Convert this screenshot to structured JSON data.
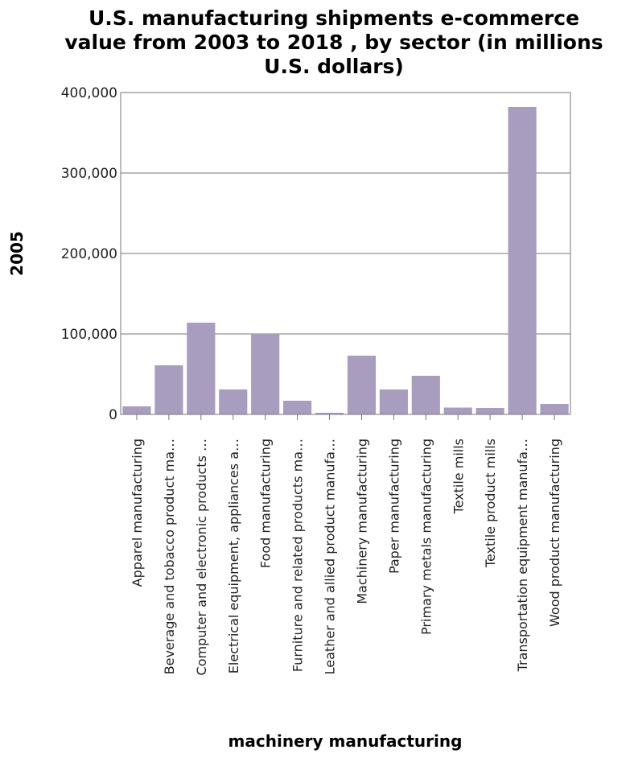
{
  "colors": {
    "bar": "#a89cbf",
    "grid": "#777777",
    "frame": "#777777",
    "background": "#ffffff",
    "text": "#000000"
  },
  "chart_data": {
    "type": "bar",
    "title_lines": [
      "U.S. manufacturing shipments e-commerce",
      "value from 2003 to 2018 , by sector (in millions",
      "U.S. dollars)"
    ],
    "xlabel": "machinery manufacturing",
    "ylabel": "2005",
    "ylim": [
      0,
      400000
    ],
    "yticks": [
      0,
      100000,
      200000,
      300000,
      400000
    ],
    "ytick_labels": [
      "0",
      "100,000",
      "200,000",
      "300,000",
      "400,000"
    ],
    "grid": "horizontal",
    "categories": [
      "Apparel manufacturing",
      "Beverage and tobacco product ma…",
      "Computer and electronic products …",
      "Electrical equipment, appliances a…",
      "Food manufacturing",
      "Furniture and related products ma…",
      "Leather and allied product manufa…",
      "Machinery manufacturing",
      "Paper manufacturing",
      "Primary metals manufacturing",
      "Textile mills",
      "Textile product mills",
      "Transportation equipment manufa…",
      "Wood product manufacturing"
    ],
    "values": [
      10000,
      61000,
      114000,
      31000,
      100000,
      17000,
      2000,
      73000,
      31000,
      48000,
      8500,
      8000,
      382000,
      13000
    ]
  }
}
